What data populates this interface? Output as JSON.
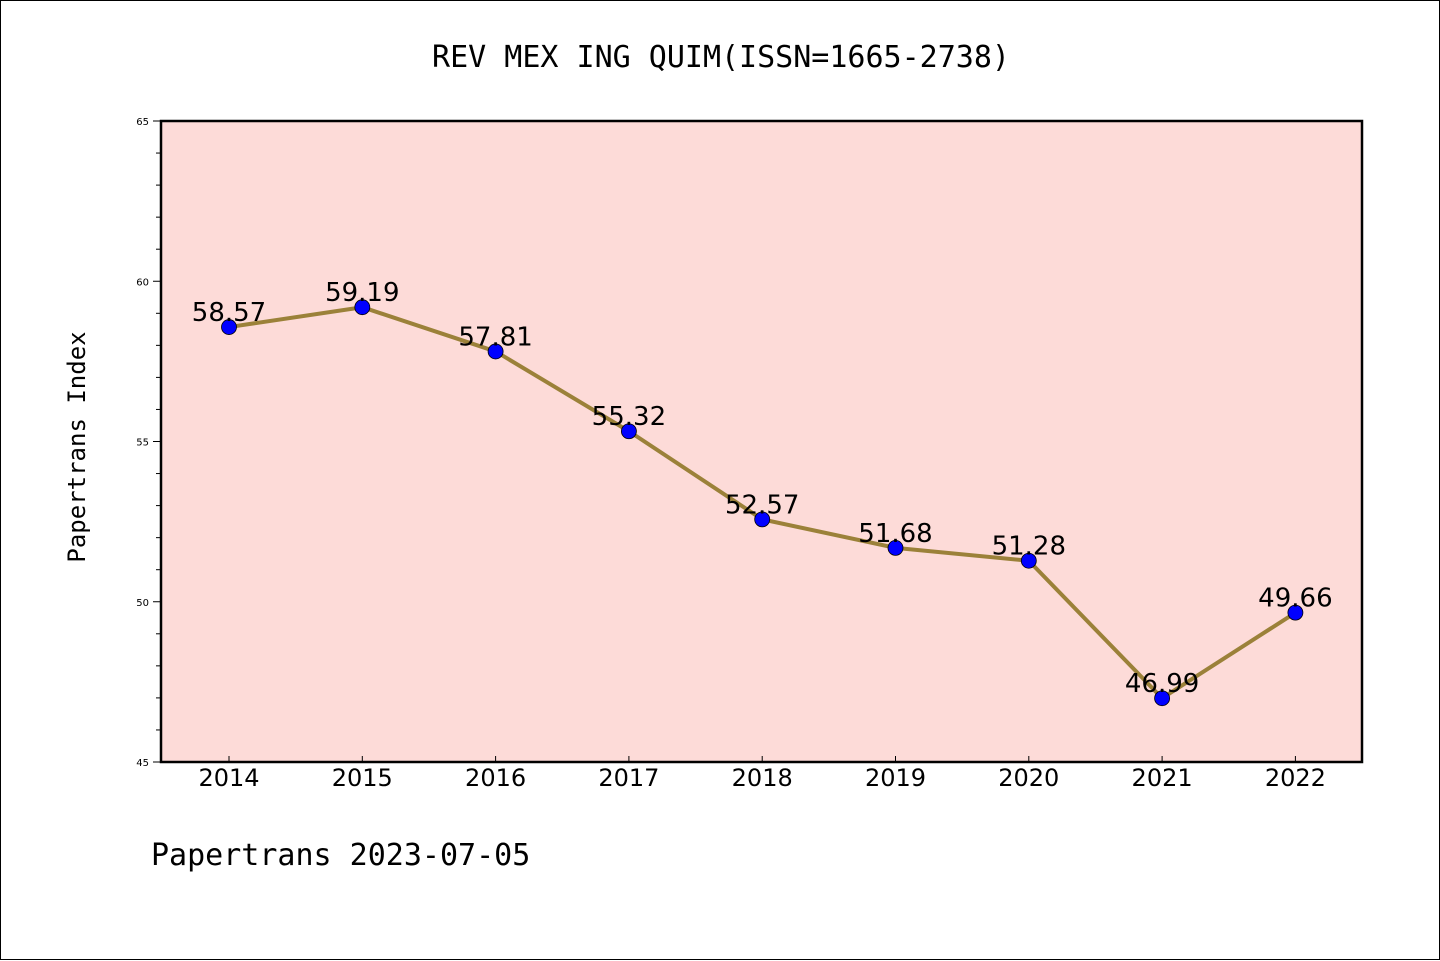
{
  "chart_data": {
    "type": "line",
    "title": "REV MEX ING QUIM(ISSN=1665-2738)",
    "xlabel": "",
    "ylabel": "Papertrans Index",
    "categories": [
      "2014",
      "2015",
      "2016",
      "2017",
      "2018",
      "2019",
      "2020",
      "2021",
      "2022"
    ],
    "series": [
      {
        "values": [
          58.57,
          59.19,
          57.81,
          55.32,
          52.57,
          51.68,
          51.28,
          46.99,
          49.66
        ],
        "labels": [
          "58.57",
          "59.19",
          "57.81",
          "55.32",
          "52.57",
          "51.68",
          "51.28",
          "46.99",
          "49.66"
        ],
        "line_color": "#9b8139",
        "marker_color": "#0000ff"
      }
    ],
    "ylim": [
      45,
      65
    ],
    "yticks": [
      "45",
      "50",
      "55",
      "60",
      "65"
    ],
    "plot_background": "#fddbd8",
    "grid": false,
    "footer": "Papertrans 2023-07-05"
  }
}
